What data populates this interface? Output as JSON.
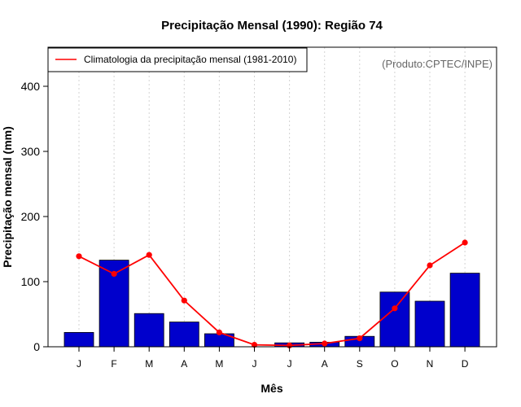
{
  "chart_data": {
    "type": "bar",
    "title": "Precipitação Mensal (1990): Região 74",
    "xlabel": "Mês",
    "ylabel": "Precipitação mensal (mm)",
    "ylim": [
      0,
      460
    ],
    "yticks": [
      0,
      100,
      200,
      300,
      400
    ],
    "categories": [
      "J",
      "F",
      "M",
      "A",
      "M",
      "J",
      "J",
      "A",
      "S",
      "O",
      "N",
      "D"
    ],
    "series": [
      {
        "name": "Precipitação mensal (1990)",
        "kind": "bar",
        "color": "#0000cc",
        "values": [
          22,
          133,
          51,
          38,
          20,
          0,
          6,
          7,
          16,
          84,
          70,
          113
        ]
      },
      {
        "name": "Climatologia da precipitação mensal (1981-2010)",
        "kind": "line",
        "color": "#ff0000",
        "values": [
          139,
          112,
          141,
          71,
          22,
          3,
          2,
          5,
          13,
          59,
          125,
          160
        ]
      }
    ],
    "legend": {
      "label": "Climatologia da precipitação mensal (1981-2010)",
      "position": "top-left"
    },
    "source_note": "(Produto:CPTEC/INPE)",
    "grid": "vertical-dotted"
  }
}
